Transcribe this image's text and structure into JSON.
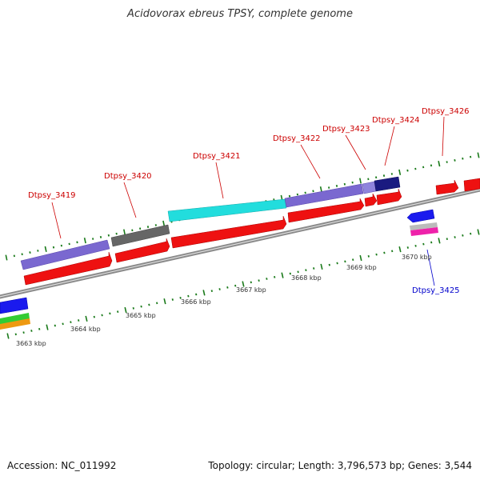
{
  "title": "Acidovorax ebreus TPSY, complete genome",
  "accession": "Accession: NC_011992",
  "summary": "Topology: circular; Length: 3,796,573 bp; Genes: 3,544",
  "colors": {
    "forward_cds": "#ee1111",
    "cog_purple": "#7a68d0",
    "cog_grey": "#666666",
    "cog_cyan": "#22dddd",
    "cog_navy": "#1a1a80",
    "reverse_blue": "#1a1aee",
    "tick_green": "#1a7a1a",
    "backbone": "#8a8a8a",
    "label_red": "#cc0000",
    "label_blue": "#0000cc"
  },
  "genes": [
    {
      "name": "Dtpsy_3419",
      "color": "red"
    },
    {
      "name": "Dtpsy_3420",
      "color": "red"
    },
    {
      "name": "Dtpsy_3421",
      "color": "red"
    },
    {
      "name": "Dtpsy_3422",
      "color": "red"
    },
    {
      "name": "Dtpsy_3423",
      "color": "red"
    },
    {
      "name": "Dtpsy_3424",
      "color": "red"
    },
    {
      "name": "Dtpsy_3425",
      "color": "blue"
    },
    {
      "name": "Dtpsy_3426",
      "color": "red"
    }
  ],
  "scale_labels": [
    "3663 kbp",
    "3664 kbp",
    "3665 kbp",
    "3666 kbp",
    "3667 kbp",
    "3668 kbp",
    "3669 kbp",
    "3670 kbp"
  ]
}
